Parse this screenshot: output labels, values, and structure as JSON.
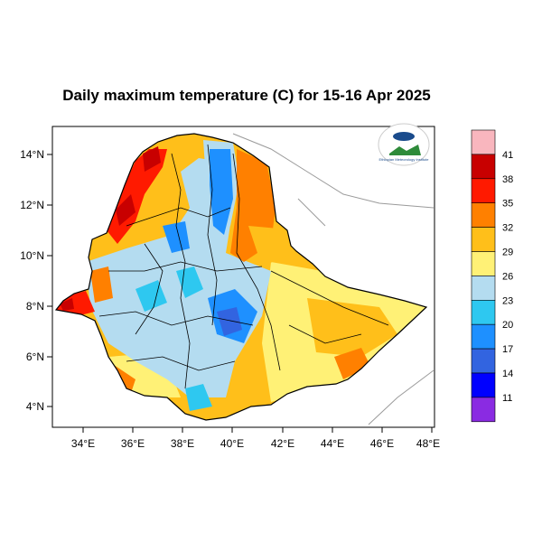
{
  "title": "Daily maximum temperature (C) for 15-16 Apr 2025",
  "x_ticks": [
    "34°E",
    "36°E",
    "38°E",
    "40°E",
    "42°E",
    "44°E",
    "46°E",
    "48°E"
  ],
  "y_ticks": [
    "14°N",
    "12°N",
    "10°N",
    "8°N",
    "6°N",
    "4°N"
  ],
  "colorbar": {
    "labels": [
      "41",
      "38",
      "35",
      "32",
      "29",
      "26",
      "23",
      "20",
      "17",
      "14",
      "11"
    ],
    "colors": [
      "#f9b6be",
      "#c80000",
      "#ff1a00",
      "#ff8000",
      "#ffbf1a",
      "#fff176",
      "#b4dcf0",
      "#2ec8f0",
      "#1e90ff",
      "#3264e0",
      "#0000ff",
      "#8a2be2"
    ]
  },
  "logo": {
    "name": "ethiopian-meteorology-institute-logo",
    "text": "Ethiopian Meteorology Institute"
  },
  "palette": {
    "orange": "#ff8000",
    "light_orange": "#ffbf1a",
    "yellow": "#fff176",
    "light_blue": "#b4dcf0",
    "blue": "#1e90ff",
    "red": "#ff1a00",
    "dark_red": "#c80000"
  }
}
